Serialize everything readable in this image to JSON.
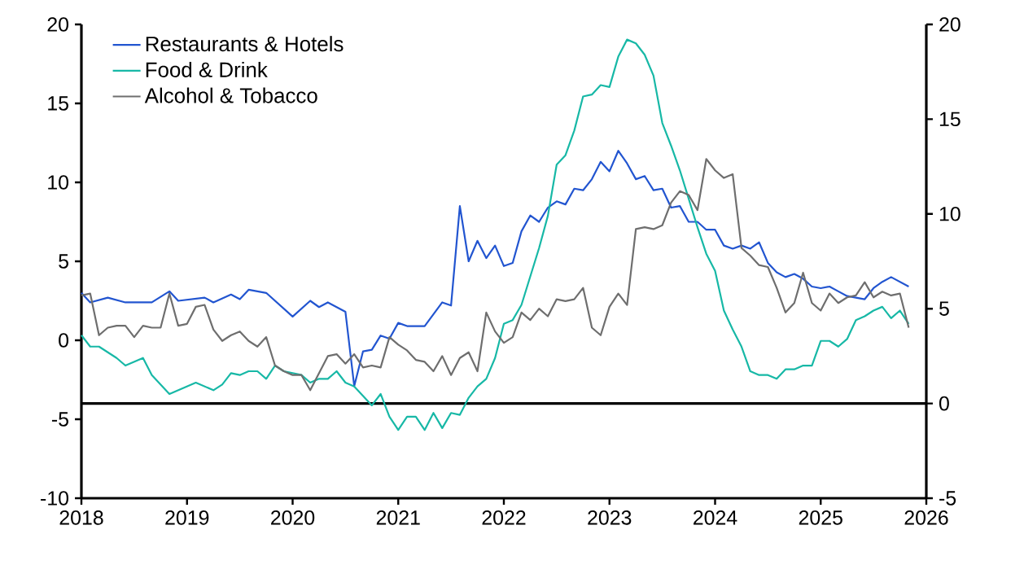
{
  "chart_data": {
    "type": "line",
    "xlim": [
      "2018-01",
      "2026-01"
    ],
    "xticks": [
      {
        "value": "2018-01",
        "label": "2018"
      },
      {
        "value": "2019-01",
        "label": "2019"
      },
      {
        "value": "2020-01",
        "label": "2020"
      },
      {
        "value": "2021-01",
        "label": "2021"
      },
      {
        "value": "2022-01",
        "label": "2022"
      },
      {
        "value": "2023-01",
        "label": "2023"
      },
      {
        "value": "2024-01",
        "label": "2024"
      },
      {
        "value": "2025-01",
        "label": "2025"
      },
      {
        "value": "2026-01",
        "label": "2026"
      }
    ],
    "ylim": [
      -10,
      20
    ],
    "yticks": [
      -10,
      -5,
      0,
      5,
      10,
      15,
      20
    ],
    "y2lim": [
      -5,
      20
    ],
    "y2ticks": [
      -5,
      0,
      5,
      10,
      15,
      20
    ],
    "legend": "top left",
    "ref_lines": [
      {
        "axis": "y2",
        "value": 0,
        "color": "#000000"
      }
    ],
    "series": [
      {
        "name": "Restaurants & Hotels",
        "color": "#2255d0",
        "x": [
          "2018-01",
          "2018-02",
          "2018-04",
          "2018-06",
          "2018-09",
          "2018-11",
          "2018-12",
          "2019-03",
          "2019-04",
          "2019-06",
          "2019-07",
          "2019-08",
          "2019-10",
          "2020-01",
          "2020-03",
          "2020-04",
          "2020-05",
          "2020-07",
          "2020-08",
          "2020-09",
          "2020-10",
          "2020-11",
          "2020-12",
          "2021-01",
          "2021-02",
          "2021-04",
          "2021-06",
          "2021-07",
          "2021-08",
          "2021-09",
          "2021-10",
          "2021-11",
          "2021-12",
          "2022-01",
          "2022-02",
          "2022-03",
          "2022-04",
          "2022-05",
          "2022-06",
          "2022-07",
          "2022-08",
          "2022-09",
          "2022-10",
          "2022-11",
          "2022-12",
          "2023-01",
          "2023-02",
          "2023-03",
          "2023-04",
          "2023-05",
          "2023-06",
          "2023-07",
          "2023-08",
          "2023-09",
          "2023-10",
          "2023-11",
          "2023-12",
          "2024-01",
          "2024-02",
          "2024-03",
          "2024-04",
          "2024-05",
          "2024-06",
          "2024-07",
          "2024-08",
          "2024-09",
          "2024-10",
          "2024-11",
          "2024-12",
          "2025-01",
          "2025-02",
          "2025-03",
          "2025-04",
          "2025-05",
          "2025-06",
          "2025-07",
          "2025-08",
          "2025-09",
          "2025-10",
          "2025-11"
        ],
        "values": [
          3.0,
          2.4,
          2.7,
          2.4,
          2.4,
          3.1,
          2.5,
          2.7,
          2.4,
          2.9,
          2.6,
          3.2,
          3.0,
          1.5,
          2.5,
          2.1,
          2.4,
          1.8,
          -2.9,
          -0.7,
          -0.6,
          0.3,
          0.1,
          1.1,
          0.9,
          0.9,
          2.4,
          2.2,
          8.5,
          5.0,
          6.3,
          5.2,
          6.0,
          4.7,
          4.9,
          6.9,
          7.9,
          7.5,
          8.4,
          8.8,
          8.6,
          9.6,
          9.5,
          10.2,
          11.3,
          10.7,
          12.0,
          11.2,
          10.2,
          10.4,
          9.5,
          9.6,
          8.4,
          8.5,
          7.5,
          7.5,
          7.0,
          7.0,
          6.0,
          5.8,
          6.0,
          5.8,
          6.2,
          4.9,
          4.3,
          4.0,
          4.2,
          3.9,
          3.4,
          3.3,
          3.4,
          3.1,
          2.8,
          2.7,
          2.6,
          3.3,
          3.7,
          4.0,
          3.7,
          3.4
        ]
      },
      {
        "name": "Food & Drink",
        "color": "#17b8a6",
        "axis": "y2",
        "x": [
          "2018-01",
          "2018-02",
          "2018-03",
          "2018-05",
          "2018-06",
          "2018-08",
          "2018-09",
          "2018-11",
          "2018-12",
          "2019-02",
          "2019-04",
          "2019-05",
          "2019-06",
          "2019-07",
          "2019-08",
          "2019-09",
          "2019-10",
          "2019-11",
          "2019-12",
          "2020-02",
          "2020-03",
          "2020-04",
          "2020-05",
          "2020-06",
          "2020-07",
          "2020-08",
          "2020-09",
          "2020-10",
          "2020-11",
          "2020-12",
          "2021-01",
          "2021-02",
          "2021-03",
          "2021-04",
          "2021-05",
          "2021-06",
          "2021-07",
          "2021-08",
          "2021-09",
          "2021-10",
          "2021-11",
          "2021-12",
          "2022-01",
          "2022-02",
          "2022-03",
          "2022-04",
          "2022-05",
          "2022-06",
          "2022-07",
          "2022-08",
          "2022-09",
          "2022-10",
          "2022-11",
          "2022-12",
          "2023-01",
          "2023-02",
          "2023-03",
          "2023-04",
          "2023-05",
          "2023-06",
          "2023-07",
          "2023-08",
          "2023-09",
          "2023-10",
          "2023-11",
          "2023-12",
          "2024-01",
          "2024-02",
          "2024-03",
          "2024-04",
          "2024-05",
          "2024-06",
          "2024-07",
          "2024-08",
          "2024-09",
          "2024-10",
          "2024-11",
          "2024-12",
          "2025-01",
          "2025-02",
          "2025-03",
          "2025-04",
          "2025-05",
          "2025-06",
          "2025-07",
          "2025-08",
          "2025-09",
          "2025-10",
          "2025-11"
        ],
        "values": [
          3.6,
          3.0,
          3.0,
          2.4,
          2.0,
          2.4,
          1.5,
          0.5,
          0.7,
          1.1,
          0.7,
          1.0,
          1.6,
          1.5,
          1.7,
          1.7,
          1.3,
          2.0,
          1.7,
          1.5,
          1.1,
          1.3,
          1.3,
          1.7,
          1.1,
          0.9,
          0.4,
          -0.1,
          0.5,
          -0.7,
          -1.4,
          -0.7,
          -0.7,
          -1.4,
          -0.5,
          -1.3,
          -0.5,
          -0.6,
          0.3,
          0.9,
          1.3,
          2.4,
          4.2,
          4.4,
          5.2,
          6.7,
          8.2,
          9.9,
          12.6,
          13.1,
          14.4,
          16.2,
          16.3,
          16.8,
          16.7,
          18.3,
          19.2,
          19.0,
          18.4,
          17.3,
          14.8,
          13.6,
          12.3,
          10.8,
          9.3,
          7.9,
          7.0,
          4.9,
          3.9,
          3.0,
          1.7,
          1.5,
          1.5,
          1.3,
          1.8,
          1.8,
          2.0,
          2.0,
          3.3,
          3.3,
          3.0,
          3.4,
          4.4,
          4.6,
          4.9,
          5.1,
          4.5,
          4.9,
          4.2
        ]
      },
      {
        "name": "Alcohol & Tobacco",
        "color": "#6e6e6e",
        "axis": "y2",
        "x": [
          "2018-01",
          "2018-02",
          "2018-03",
          "2018-04",
          "2018-05",
          "2018-06",
          "2018-07",
          "2018-08",
          "2018-09",
          "2018-10",
          "2018-11",
          "2018-12",
          "2019-01",
          "2019-02",
          "2019-03",
          "2019-04",
          "2019-05",
          "2019-06",
          "2019-07",
          "2019-08",
          "2019-09",
          "2019-10",
          "2019-11",
          "2019-12",
          "2020-01",
          "2020-02",
          "2020-03",
          "2020-04",
          "2020-05",
          "2020-06",
          "2020-07",
          "2020-08",
          "2020-09",
          "2020-10",
          "2020-11",
          "2020-12",
          "2021-01",
          "2021-02",
          "2021-03",
          "2021-04",
          "2021-05",
          "2021-06",
          "2021-07",
          "2021-08",
          "2021-09",
          "2021-10",
          "2021-11",
          "2021-12",
          "2022-01",
          "2022-02",
          "2022-03",
          "2022-04",
          "2022-05",
          "2022-06",
          "2022-07",
          "2022-08",
          "2022-09",
          "2022-10",
          "2022-11",
          "2022-12",
          "2023-01",
          "2023-02",
          "2023-03",
          "2023-04",
          "2023-05",
          "2023-06",
          "2023-07",
          "2023-08",
          "2023-09",
          "2023-10",
          "2023-11",
          "2023-12",
          "2024-01",
          "2024-02",
          "2024-03",
          "2024-04",
          "2024-05",
          "2024-06",
          "2024-07",
          "2024-08",
          "2024-09",
          "2024-10",
          "2024-11",
          "2024-12",
          "2025-01",
          "2025-02",
          "2025-03",
          "2025-04",
          "2025-05",
          "2025-06",
          "2025-07",
          "2025-08",
          "2025-09",
          "2025-10",
          "2025-11"
        ],
        "values": [
          5.7,
          5.8,
          3.6,
          4.0,
          4.1,
          4.1,
          3.5,
          4.1,
          4.0,
          4.0,
          5.8,
          4.1,
          4.2,
          5.1,
          5.2,
          3.9,
          3.3,
          3.6,
          3.8,
          3.3,
          3.0,
          3.5,
          2.0,
          1.7,
          1.5,
          1.5,
          0.7,
          1.6,
          2.5,
          2.6,
          2.1,
          2.6,
          1.9,
          2.0,
          1.9,
          3.5,
          3.1,
          2.8,
          2.3,
          2.2,
          1.7,
          2.5,
          1.5,
          2.4,
          2.7,
          1.7,
          4.8,
          3.8,
          3.2,
          3.5,
          4.8,
          4.4,
          5.0,
          4.6,
          5.5,
          5.4,
          5.5,
          6.1,
          4.0,
          3.6,
          5.1,
          5.8,
          5.2,
          9.2,
          9.3,
          9.2,
          9.4,
          10.6,
          11.2,
          11.0,
          10.2,
          12.9,
          12.3,
          11.9,
          12.1,
          8.2,
          7.8,
          7.3,
          7.2,
          6.1,
          4.8,
          5.3,
          6.9,
          5.3,
          4.9,
          5.8,
          5.3,
          5.6,
          5.7,
          6.4,
          5.6,
          5.9,
          5.7,
          5.8,
          4.0
        ]
      }
    ]
  }
}
